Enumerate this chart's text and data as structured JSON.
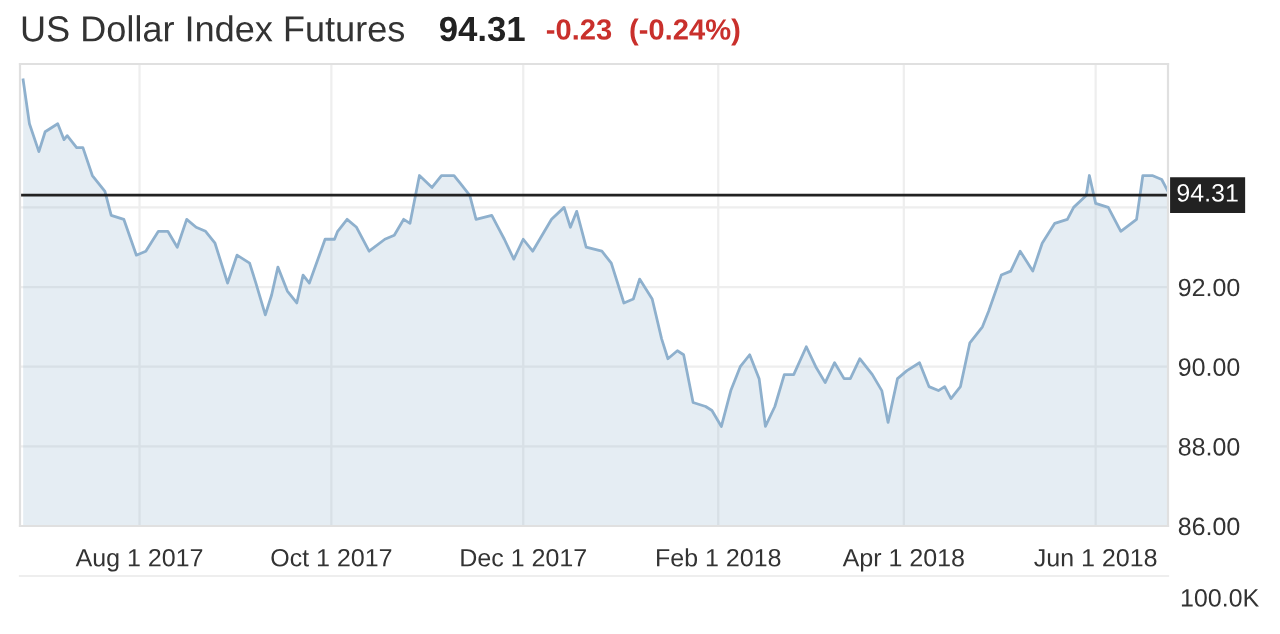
{
  "chart_data": {
    "type": "area",
    "title": "US Dollar Index Futures",
    "subtitle": "94.31",
    "annotations": [
      "-0.23",
      "(-0.24%)",
      "100.0K"
    ],
    "x": [
      "2017-06-25",
      "2017-06-27",
      "2017-06-30",
      "2017-07-02",
      "2017-07-06",
      "2017-07-08",
      "2017-07-09",
      "2017-07-12",
      "2017-07-14",
      "2017-07-17",
      "2017-07-21",
      "2017-07-23",
      "2017-07-27",
      "2017-07-31",
      "2017-08-03",
      "2017-08-07",
      "2017-08-10",
      "2017-08-13",
      "2017-08-16",
      "2017-08-19",
      "2017-08-22",
      "2017-08-25",
      "2017-08-29",
      "2017-09-01",
      "2017-09-05",
      "2017-09-07",
      "2017-09-10",
      "2017-09-12",
      "2017-09-14",
      "2017-09-17",
      "2017-09-20",
      "2017-09-22",
      "2017-09-24",
      "2017-09-29",
      "2017-10-02",
      "2017-10-03",
      "2017-10-06",
      "2017-10-09",
      "2017-10-13",
      "2017-10-18",
      "2017-10-21",
      "2017-10-24",
      "2017-10-26",
      "2017-10-29",
      "2017-11-02",
      "2017-11-05",
      "2017-11-09",
      "2017-11-11",
      "2017-11-14",
      "2017-11-16",
      "2017-11-21",
      "2017-11-23",
      "2017-11-25",
      "2017-11-28",
      "2017-12-01",
      "2017-12-04",
      "2017-12-10",
      "2017-12-14",
      "2017-12-16",
      "2017-12-18",
      "2017-12-21",
      "2017-12-26",
      "2017-12-29",
      "2018-01-02",
      "2018-01-05",
      "2018-01-07",
      "2018-01-11",
      "2018-01-14",
      "2018-01-16",
      "2018-01-19",
      "2018-01-21",
      "2018-01-24",
      "2018-01-28",
      "2018-01-30",
      "2018-02-02",
      "2018-02-05",
      "2018-02-08",
      "2018-02-11",
      "2018-02-14",
      "2018-02-16",
      "2018-02-19",
      "2018-02-22",
      "2018-02-25",
      "2018-03-01",
      "2018-03-04",
      "2018-03-07",
      "2018-03-10",
      "2018-03-13",
      "2018-03-15",
      "2018-03-18",
      "2018-03-22",
      "2018-03-25",
      "2018-03-27",
      "2018-03-30",
      "2018-04-02",
      "2018-04-06",
      "2018-04-09",
      "2018-04-12",
      "2018-04-14",
      "2018-04-16",
      "2018-04-19",
      "2018-04-22",
      "2018-04-26",
      "2018-04-28",
      "2018-05-02",
      "2018-05-05",
      "2018-05-08",
      "2018-05-12",
      "2018-05-15",
      "2018-05-19",
      "2018-05-23",
      "2018-05-25",
      "2018-05-29",
      "2018-05-30",
      "2018-06-01",
      "2018-06-05",
      "2018-06-09",
      "2018-06-14",
      "2018-06-16",
      "2018-06-19",
      "2018-06-22",
      "2018-06-24"
    ],
    "series": [
      {
        "color": "#8eb0cd",
        "values": [
          97.2,
          96.1,
          95.4,
          95.9,
          96.1,
          95.7,
          95.8,
          95.5,
          95.5,
          94.8,
          94.4,
          93.8,
          93.7,
          92.8,
          92.9,
          93.4,
          93.4,
          93.0,
          93.7,
          93.5,
          93.4,
          93.1,
          92.1,
          92.8,
          92.6,
          92.1,
          91.3,
          91.8,
          92.5,
          91.9,
          91.6,
          92.3,
          92.1,
          93.2,
          93.2,
          93.4,
          93.7,
          93.5,
          92.9,
          93.2,
          93.3,
          93.7,
          93.6,
          94.8,
          94.5,
          94.8,
          94.8,
          94.6,
          94.3,
          93.7,
          93.8,
          93.5,
          93.2,
          92.7,
          93.2,
          92.9,
          93.7,
          94.0,
          93.5,
          93.9,
          93.0,
          92.9,
          92.6,
          91.6,
          91.7,
          92.2,
          91.7,
          90.7,
          90.2,
          90.4,
          90.3,
          89.1,
          89.0,
          88.9,
          88.5,
          89.4,
          90.0,
          90.3,
          89.7,
          88.5,
          89.0,
          89.8,
          89.8,
          90.5,
          90.0,
          89.6,
          90.1,
          89.7,
          89.7,
          90.2,
          89.8,
          89.4,
          88.6,
          89.7,
          89.9,
          90.1,
          89.5,
          89.4,
          89.5,
          89.2,
          89.5,
          90.6,
          91.0,
          91.4,
          92.3,
          92.4,
          92.9,
          92.4,
          93.1,
          93.6,
          93.7,
          94.0,
          94.3,
          94.8,
          94.1,
          94.0,
          93.4,
          93.7,
          94.8,
          94.8,
          94.7,
          94.4
        ]
      }
    ],
    "xlim": [
      "2017-06-24",
      "2018-06-24"
    ],
    "xticks": [
      {
        "value": "2017-08-01",
        "label": "Aug 1 2017"
      },
      {
        "value": "2017-10-01",
        "label": "Oct 1 2017"
      },
      {
        "value": "2017-12-01",
        "label": "Dec 1 2017"
      },
      {
        "value": "2018-02-01",
        "label": "Feb 1 2018"
      },
      {
        "value": "2018-04-01",
        "label": "Apr 1 2018"
      },
      {
        "value": "2018-06-01",
        "label": "Jun 1 2018"
      }
    ],
    "ylim": [
      86,
      97.6
    ],
    "yticks": [
      {
        "value": 86,
        "label": "86.00"
      },
      {
        "value": 88,
        "label": "88.00"
      },
      {
        "value": 90,
        "label": "90.00"
      },
      {
        "value": 92,
        "label": "92.00"
      },
      {
        "value": 94,
        "label": null
      }
    ],
    "ref_lines": [
      {
        "axis": "y",
        "value": 94.31,
        "label": "94.31",
        "color": "#222222"
      }
    ],
    "grid": true
  }
}
